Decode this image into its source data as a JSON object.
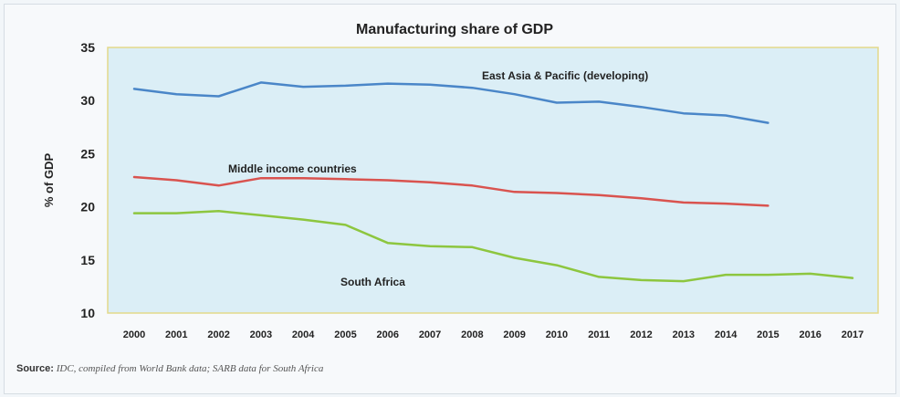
{
  "chart_data": {
    "type": "line",
    "title": "Manufacturing share of GDP",
    "ylabel": "% of GDP",
    "xlabel": "",
    "ylim": [
      10,
      35
    ],
    "yticks": [
      10,
      15,
      20,
      25,
      30,
      35
    ],
    "categories": [
      "2000",
      "2001",
      "2002",
      "2003",
      "2004",
      "2005",
      "2006",
      "2007",
      "2008",
      "2009",
      "2010",
      "2011",
      "2012",
      "2013",
      "2014",
      "2015",
      "2016",
      "2017"
    ],
    "grid": false,
    "colors": {
      "plot_background": "#dbeef6",
      "plot_border": "#e3d98a",
      "east_asia": "#4a86c8",
      "middle_income": "#d9534f",
      "south_africa": "#8dc63f"
    },
    "series": [
      {
        "name": "East Asia & Pacific (developing)",
        "color": "#4a86c8",
        "values": [
          31.1,
          30.6,
          30.4,
          31.7,
          31.3,
          31.4,
          31.6,
          31.5,
          31.2,
          30.6,
          29.8,
          29.9,
          29.4,
          28.8,
          28.6,
          27.9,
          null,
          null
        ]
      },
      {
        "name": "Middle income countries",
        "color": "#d9534f",
        "values": [
          22.8,
          22.5,
          22.0,
          22.7,
          22.7,
          22.6,
          22.5,
          22.3,
          22.0,
          21.4,
          21.3,
          21.1,
          20.8,
          20.4,
          20.3,
          20.1,
          null,
          null
        ]
      },
      {
        "name": "South Africa",
        "color": "#8dc63f",
        "values": [
          19.4,
          19.4,
          19.6,
          19.2,
          18.8,
          18.3,
          16.6,
          16.3,
          16.2,
          15.2,
          14.5,
          13.4,
          13.1,
          13.0,
          13.6,
          13.6,
          13.7,
          13.3
        ]
      }
    ]
  },
  "source": {
    "label": "Source:",
    "text": " IDC, compiled from World Bank data; SARB data for South Africa"
  }
}
